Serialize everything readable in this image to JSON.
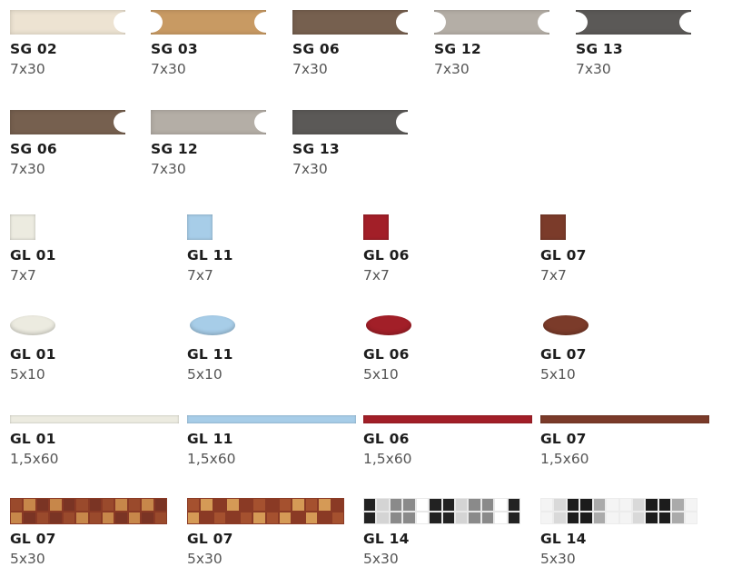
{
  "colors": {
    "SG02": "#ede3d2",
    "SG03": "#c89a63",
    "SG06": "#76604f",
    "SG12": "#b4aea6",
    "SG13": "#5b5957",
    "GL01": "#ecebe0",
    "GL11": "#a7cde8",
    "GL06": "#a21f28",
    "GL07": "#7b3b2a"
  },
  "row1": [
    {
      "code": "SG 02",
      "size": "7x30",
      "color": "#ede3d2"
    },
    {
      "code": "SG 03",
      "size": "7x30",
      "color": "#c89a63"
    },
    {
      "code": "SG 06",
      "size": "7x30",
      "color": "#76604f"
    },
    {
      "code": "SG 12",
      "size": "7x30",
      "color": "#b4aea6"
    },
    {
      "code": "SG 13",
      "size": "7x30",
      "color": "#5b5957"
    }
  ],
  "row2": [
    {
      "code": "SG 06",
      "size": "7x30",
      "color": "#76604f"
    },
    {
      "code": "SG 12",
      "size": "7x30",
      "color": "#b4aea6"
    },
    {
      "code": "SG 13",
      "size": "7x30",
      "color": "#5b5957"
    }
  ],
  "row3": [
    {
      "code": "GL 01",
      "size": "7x7",
      "color": "#ecebe0"
    },
    {
      "code": "GL 11",
      "size": "7x7",
      "color": "#a7cde8"
    },
    {
      "code": "GL 06",
      "size": "7x7",
      "color": "#a21f28"
    },
    {
      "code": "GL 07",
      "size": "7x7",
      "color": "#7b3b2a"
    }
  ],
  "row4": [
    {
      "code": "GL 01",
      "size": "5x10",
      "color": "#ecebe0"
    },
    {
      "code": "GL 11",
      "size": "5x10",
      "color": "#a7cde8"
    },
    {
      "code": "GL 06",
      "size": "5x10",
      "color": "#a21f28"
    },
    {
      "code": "GL 07",
      "size": "5x10",
      "color": "#7b3b2a"
    }
  ],
  "row5": [
    {
      "code": "GL 01",
      "size": "1,5x60",
      "color": "#ecebe0"
    },
    {
      "code": "GL 11",
      "size": "1,5x60",
      "color": "#a7cde8"
    },
    {
      "code": "GL 06",
      "size": "1,5x60",
      "color": "#a21f28"
    },
    {
      "code": "GL 07",
      "size": "1,5x60",
      "color": "#7b3b2a"
    }
  ],
  "row6": [
    {
      "code": "GL 07",
      "size": "5x30",
      "palette": [
        "#9a4a2c",
        "#c7874a",
        "#7a3424"
      ]
    },
    {
      "code": "GL 07",
      "size": "5x30",
      "palette": [
        "#a5512f",
        "#d59a56",
        "#8a3a25"
      ]
    },
    {
      "code": "GL 14",
      "size": "5x30",
      "palette": [
        "#222222",
        "#ffffff",
        "#8a8a8a",
        "#d4d4d4"
      ]
    },
    {
      "code": "GL 14",
      "size": "5x30",
      "palette": [
        "#f4f4f4",
        "#aaaaaa",
        "#1c1c1c",
        "#d9d9d9"
      ]
    }
  ]
}
